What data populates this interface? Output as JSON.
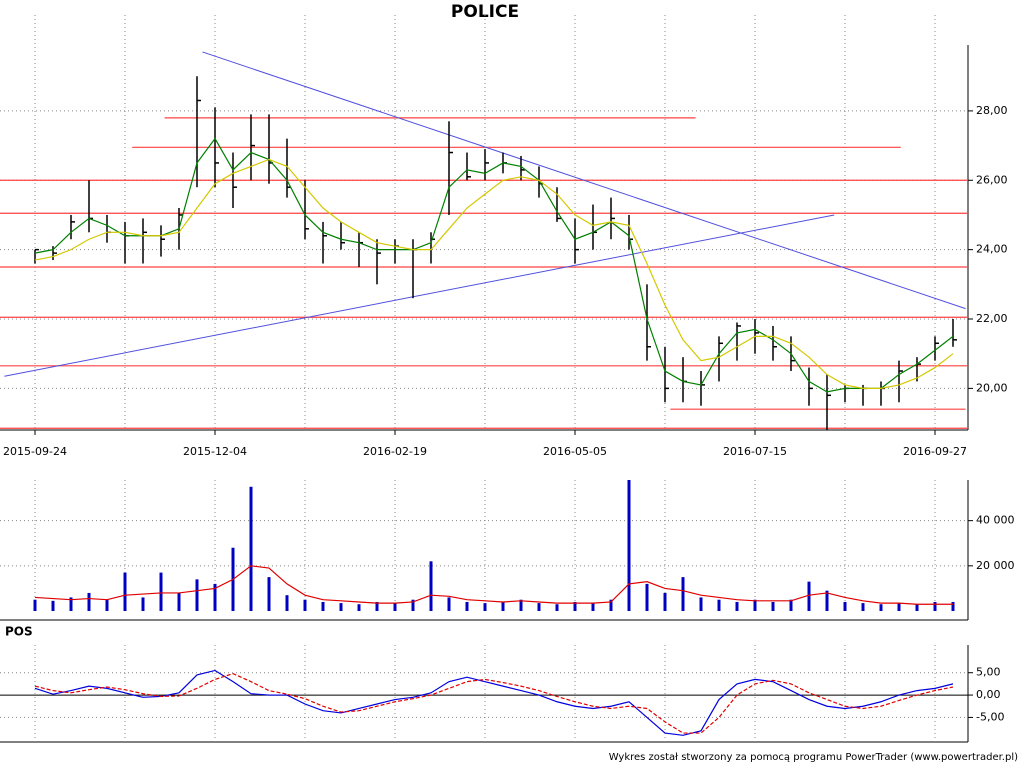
{
  "chart_data": [
    {
      "type": "ohlc",
      "title": "POLICE",
      "categories": [
        "2015-09-24",
        null,
        null,
        null,
        null,
        null,
        null,
        null,
        null,
        null,
        "2015-12-04",
        null,
        null,
        null,
        null,
        null,
        null,
        null,
        null,
        null,
        "2016-02-19",
        null,
        null,
        null,
        null,
        null,
        null,
        null,
        null,
        null,
        "2016-05-05",
        null,
        null,
        null,
        null,
        null,
        null,
        null,
        null,
        null,
        "2016-07-15",
        null,
        null,
        null,
        null,
        null,
        null,
        null,
        null,
        null,
        "2016-09-27",
        null
      ],
      "high": [
        24.0,
        24.1,
        25.0,
        26.0,
        25.0,
        24.8,
        24.9,
        24.7,
        25.2,
        29.0,
        28.1,
        26.8,
        27.9,
        27.9,
        27.2,
        26.0,
        24.8,
        24.8,
        24.5,
        24.3,
        24.3,
        24.3,
        24.5,
        27.7,
        26.8,
        26.9,
        26.8,
        26.7,
        26.4,
        25.8,
        24.9,
        25.3,
        25.5,
        25.0,
        23.0,
        21.2,
        20.9,
        20.5,
        21.5,
        21.9,
        22.0,
        21.8,
        21.5,
        20.6,
        20.4,
        20.1,
        20.1,
        20.2,
        20.8,
        20.9,
        21.5,
        22.0
      ],
      "low": [
        23.6,
        23.7,
        24.3,
        24.5,
        24.2,
        23.6,
        23.6,
        23.8,
        24.0,
        25.8,
        25.8,
        25.2,
        26.0,
        25.9,
        25.5,
        24.3,
        23.6,
        24.0,
        23.5,
        23.0,
        23.6,
        22.6,
        23.6,
        25.0,
        26.0,
        26.0,
        26.2,
        26.0,
        25.5,
        24.8,
        23.6,
        24.0,
        24.3,
        24.0,
        20.8,
        19.6,
        19.6,
        19.5,
        20.2,
        20.8,
        21.0,
        20.8,
        20.5,
        19.5,
        18.8,
        19.6,
        19.5,
        19.5,
        19.6,
        20.2,
        20.8,
        21.2
      ],
      "close": [
        24.0,
        23.9,
        24.8,
        24.9,
        24.5,
        24.4,
        24.5,
        24.3,
        25.0,
        28.3,
        26.5,
        25.8,
        27.0,
        26.5,
        25.8,
        24.6,
        24.4,
        24.2,
        24.2,
        23.9,
        24.1,
        24.0,
        24.3,
        26.8,
        26.1,
        26.5,
        26.5,
        26.3,
        25.9,
        24.9,
        24.0,
        24.5,
        24.9,
        24.3,
        21.2,
        20.0,
        20.2,
        20.1,
        21.3,
        21.8,
        21.6,
        21.2,
        20.8,
        20.0,
        19.8,
        20.0,
        20.0,
        20.0,
        20.5,
        20.7,
        21.3,
        21.4
      ],
      "color": "#000000",
      "lines": [
        {
          "color": "#008000",
          "values": [
            23.9,
            24.0,
            24.5,
            24.9,
            24.7,
            24.4,
            24.4,
            24.4,
            24.6,
            26.5,
            27.2,
            26.3,
            26.8,
            26.6,
            26.0,
            25.0,
            24.5,
            24.3,
            24.2,
            24.0,
            24.0,
            24.0,
            24.2,
            25.8,
            26.3,
            26.2,
            26.5,
            26.4,
            26.0,
            25.1,
            24.3,
            24.5,
            24.8,
            24.4,
            22.0,
            20.5,
            20.2,
            20.1,
            21.0,
            21.6,
            21.7,
            21.4,
            21.0,
            20.2,
            19.9,
            20.0,
            20.0,
            20.0,
            20.4,
            20.7,
            21.1,
            21.5
          ]
        },
        {
          "color": "#d4c800",
          "values": [
            23.7,
            23.8,
            24.0,
            24.3,
            24.5,
            24.5,
            24.4,
            24.4,
            24.5,
            25.2,
            25.9,
            26.2,
            26.4,
            26.6,
            26.4,
            25.8,
            25.2,
            24.8,
            24.5,
            24.2,
            24.1,
            24.0,
            24.0,
            24.6,
            25.2,
            25.6,
            26.0,
            26.1,
            26.0,
            25.6,
            25.0,
            24.7,
            24.8,
            24.7,
            23.6,
            22.4,
            21.4,
            20.8,
            20.9,
            21.2,
            21.5,
            21.5,
            21.3,
            20.9,
            20.4,
            20.1,
            20.0,
            20.0,
            20.1,
            20.3,
            20.6,
            21.0
          ]
        }
      ],
      "hlines": [
        {
          "value": 27.8,
          "x": [
            7.2,
            36.7
          ],
          "color": "#ff4040"
        },
        {
          "value": 26.95,
          "x": [
            5.4,
            48.1
          ],
          "color": "#ff4040"
        },
        {
          "value": 26.0,
          "color": "#ff4040"
        },
        {
          "value": 25.05,
          "color": "#ff4040"
        },
        {
          "value": 23.5,
          "color": "#ff4040"
        },
        {
          "value": 22.05,
          "color": "#ff4040"
        },
        {
          "value": 20.65,
          "color": "#ff4040"
        },
        {
          "value": 19.4,
          "x": [
            35.3,
            51.7
          ],
          "color": "#ff4040"
        },
        {
          "value": 18.85,
          "color": "#ff4040"
        }
      ],
      "trendlines": [
        {
          "x": [
            9.3,
            51.7
          ],
          "y": [
            29.7,
            22.3
          ],
          "color": "#5050e0"
        },
        {
          "x": [
            -1.7,
            44.4
          ],
          "y": [
            20.35,
            25.0
          ],
          "color": "#5050e0"
        }
      ],
      "ylim": [
        18.8,
        29.9
      ],
      "yticks": [
        {
          "value": 20,
          "label": "20,00"
        },
        {
          "value": 22,
          "label": "22,00"
        },
        {
          "value": 24,
          "label": "24,00"
        },
        {
          "value": 26,
          "label": "26,00"
        },
        {
          "value": 28,
          "label": "28,00"
        }
      ],
      "grid": true
    },
    {
      "type": "bar",
      "values": [
        5000,
        4500,
        6000,
        8000,
        5000,
        17000,
        6000,
        17000,
        8000,
        14000,
        12000,
        28000,
        55000,
        15000,
        7000,
        5000,
        4000,
        3500,
        3000,
        4000,
        3500,
        5000,
        22000,
        6000,
        4000,
        3500,
        4000,
        5000,
        3500,
        3000,
        4000,
        3500,
        5000,
        58000,
        12000,
        8000,
        15000,
        6000,
        5000,
        4000,
        5000,
        4000,
        5000,
        13000,
        9000,
        4000,
        3500,
        3000,
        3500,
        3000,
        4000,
        4000
      ],
      "color": "#0000c0",
      "lines": [
        {
          "color": "#e00000",
          "values": [
            6000,
            5500,
            5000,
            5500,
            5000,
            7000,
            7500,
            8000,
            8000,
            9000,
            10000,
            14000,
            20000,
            19000,
            12000,
            7000,
            5000,
            4500,
            4000,
            3500,
            3500,
            4000,
            7000,
            6500,
            5000,
            4500,
            4000,
            4500,
            4000,
            3500,
            3500,
            3500,
            4000,
            12000,
            13000,
            10000,
            9000,
            7000,
            6000,
            5000,
            4500,
            4500,
            4500,
            7000,
            8000,
            6000,
            4500,
            3500,
            3500,
            3000,
            3000,
            3000
          ]
        }
      ],
      "ylim": [
        0,
        58000
      ],
      "yticks": [
        {
          "value": 20000,
          "label": "20 000"
        },
        {
          "value": 40000,
          "label": "40 000"
        }
      ],
      "grid": true
    },
    {
      "type": "line",
      "title": "POS",
      "series": [
        {
          "color": "#0000e0",
          "dashed": false,
          "values": [
            1.5,
            0.2,
            1.0,
            2.0,
            1.5,
            0.5,
            -0.5,
            -0.3,
            0.5,
            4.5,
            5.5,
            3.0,
            0.3,
            0.0,
            0.0,
            -2.0,
            -3.5,
            -4.0,
            -3.0,
            -2.0,
            -1.0,
            -0.5,
            0.5,
            3.0,
            4.0,
            3.0,
            2.0,
            1.0,
            0.0,
            -1.5,
            -2.5,
            -3.0,
            -2.5,
            -1.5,
            -5.0,
            -8.5,
            -9.0,
            -8.0,
            -1.0,
            2.5,
            3.5,
            3.0,
            1.0,
            -1.0,
            -2.5,
            -3.0,
            -2.5,
            -1.5,
            0.0,
            1.0,
            1.5,
            2.5
          ]
        },
        {
          "color": "#e00000",
          "dashed": true,
          "values": [
            2.0,
            1.0,
            0.5,
            1.2,
            1.8,
            1.2,
            0.3,
            -0.3,
            -0.2,
            1.5,
            3.5,
            4.8,
            3.0,
            1.0,
            0.2,
            -0.8,
            -2.5,
            -3.8,
            -3.5,
            -2.5,
            -1.5,
            -0.8,
            0.0,
            1.5,
            3.0,
            3.5,
            2.8,
            2.0,
            1.0,
            -0.3,
            -1.5,
            -2.5,
            -3.0,
            -2.5,
            -3.0,
            -6.0,
            -8.5,
            -8.5,
            -5.0,
            0.0,
            2.5,
            3.3,
            2.5,
            0.5,
            -1.0,
            -2.5,
            -3.0,
            -2.5,
            -1.2,
            0.0,
            1.0,
            1.8
          ]
        }
      ],
      "ylim": [
        -10.5,
        11.2
      ],
      "yticks": [
        {
          "value": -5,
          "label": "-5,00"
        },
        {
          "value": 0,
          "label": "0,00"
        },
        {
          "value": 5,
          "label": "5,00"
        }
      ],
      "grid": true
    }
  ],
  "footer": "Wykres został stworzony za pomocą programu PowerTrader (www.powertrader.pl)"
}
